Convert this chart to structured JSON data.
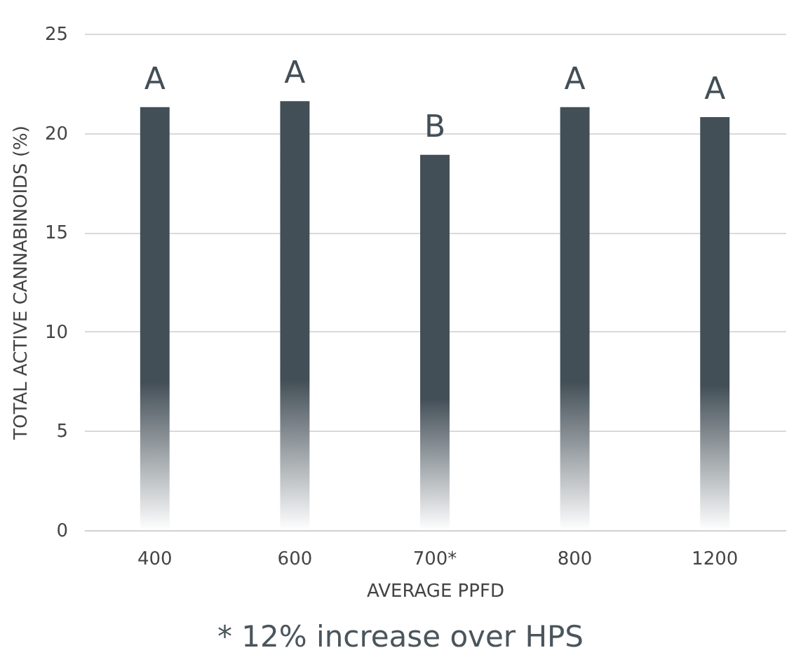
{
  "chart_data": {
    "type": "bar",
    "xlabel": "AVERAGE PPFD",
    "ylabel": "TOTAL ACTIVE CANNABINOIDS (%)",
    "categories": [
      "400",
      "600",
      "700*",
      "800",
      "1200"
    ],
    "series": [
      {
        "color": "#434f57",
        "values": [
          21.3,
          21.6,
          18.9,
          21.3,
          20.8
        ]
      }
    ],
    "ylim": [
      0,
      25
    ],
    "yticks": [
      0,
      5,
      10,
      15,
      20,
      25
    ],
    "grid": "y",
    "annotations": [
      {
        "text": "A",
        "x": "400",
        "y": 21.3
      },
      {
        "text": "A",
        "x": "600",
        "y": 21.6
      },
      {
        "text": "B",
        "x": "700*",
        "y": 18.9
      },
      {
        "text": "A",
        "x": "800",
        "y": 21.3
      },
      {
        "text": "A",
        "x": "1200",
        "y": 20.8
      },
      "* 12% increase over HPS"
    ]
  }
}
